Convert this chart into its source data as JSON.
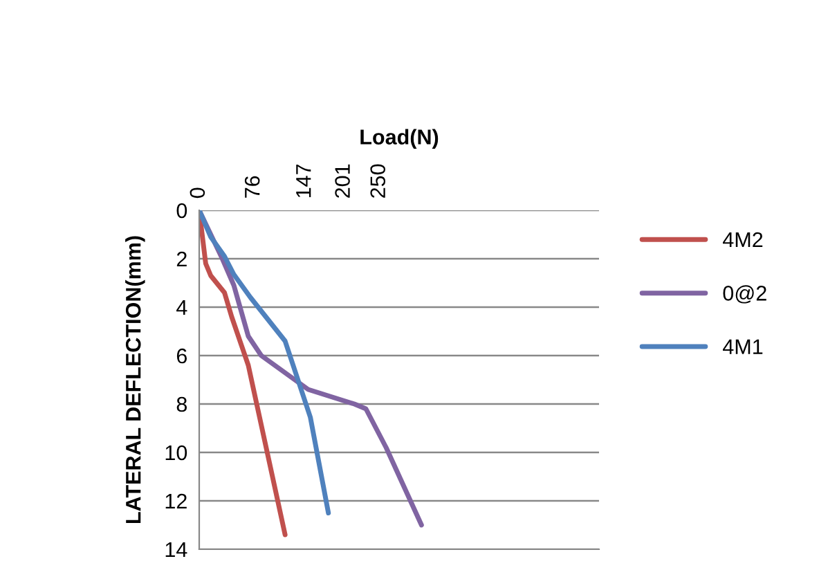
{
  "chart_data": {
    "type": "line",
    "xlabel": "Load(N)",
    "ylabel": "LATERAL DEFLECTION(mm)",
    "xlim": [
      0,
      554
    ],
    "xticks": [
      0,
      76,
      147,
      201,
      250
    ],
    "ylim": [
      14,
      0
    ],
    "yticks": [
      0,
      2,
      4,
      6,
      8,
      10,
      12,
      14
    ],
    "grid": "y",
    "legend": "right",
    "marker": "none",
    "line_style": "solid",
    "series": [
      {
        "name": "4M2",
        "color": "#c0504d",
        "x": [
          0,
          9,
          16,
          35,
          45,
          68,
          119
        ],
        "values": [
          0,
          2.2,
          2.7,
          3.4,
          4.4,
          6.4,
          13.4
        ]
      },
      {
        "name": "0@2",
        "color": "#8064a2",
        "x": [
          0,
          32,
          48,
          68,
          86,
          151,
          215,
          231,
          259,
          308
        ],
        "values": [
          0,
          2.0,
          3.1,
          5.2,
          6.0,
          7.4,
          8.0,
          8.2,
          9.8,
          13.0
        ]
      },
      {
        "name": "4M1",
        "color": "#4f81bd",
        "x": [
          0,
          16,
          35,
          48,
          71,
          119,
          154,
          179
        ],
        "values": [
          0,
          1.1,
          1.9,
          2.65,
          3.6,
          5.4,
          8.55,
          12.5
        ]
      }
    ]
  }
}
